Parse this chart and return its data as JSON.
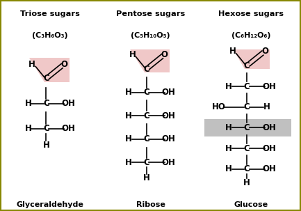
{
  "bg_color": "#F5C518",
  "white_color": "#FFFFFF",
  "text_color": "#000000",
  "aldehyde_highlight": "#F0C8C8",
  "glucose_highlight": "#C0C0C0",
  "fig_width": 4.33,
  "fig_height": 3.03,
  "panels": [
    {
      "title_line1": "Triose sugars",
      "title_line2": "(C₃H₆O₃)",
      "name": "Glyceraldehyde",
      "carbon_count": 3,
      "gray_row": null,
      "ho_row": null
    },
    {
      "title_line1": "Pentose sugars",
      "title_line2": "(C₅H₁₀O₅)",
      "name": "Ribose",
      "carbon_count": 5,
      "gray_row": null,
      "ho_row": null
    },
    {
      "title_line1": "Hexose sugars",
      "title_line2": "(C₆H₁₂O₆)",
      "name": "Glucose",
      "carbon_count": 6,
      "gray_row": 2,
      "ho_row": 1
    }
  ]
}
